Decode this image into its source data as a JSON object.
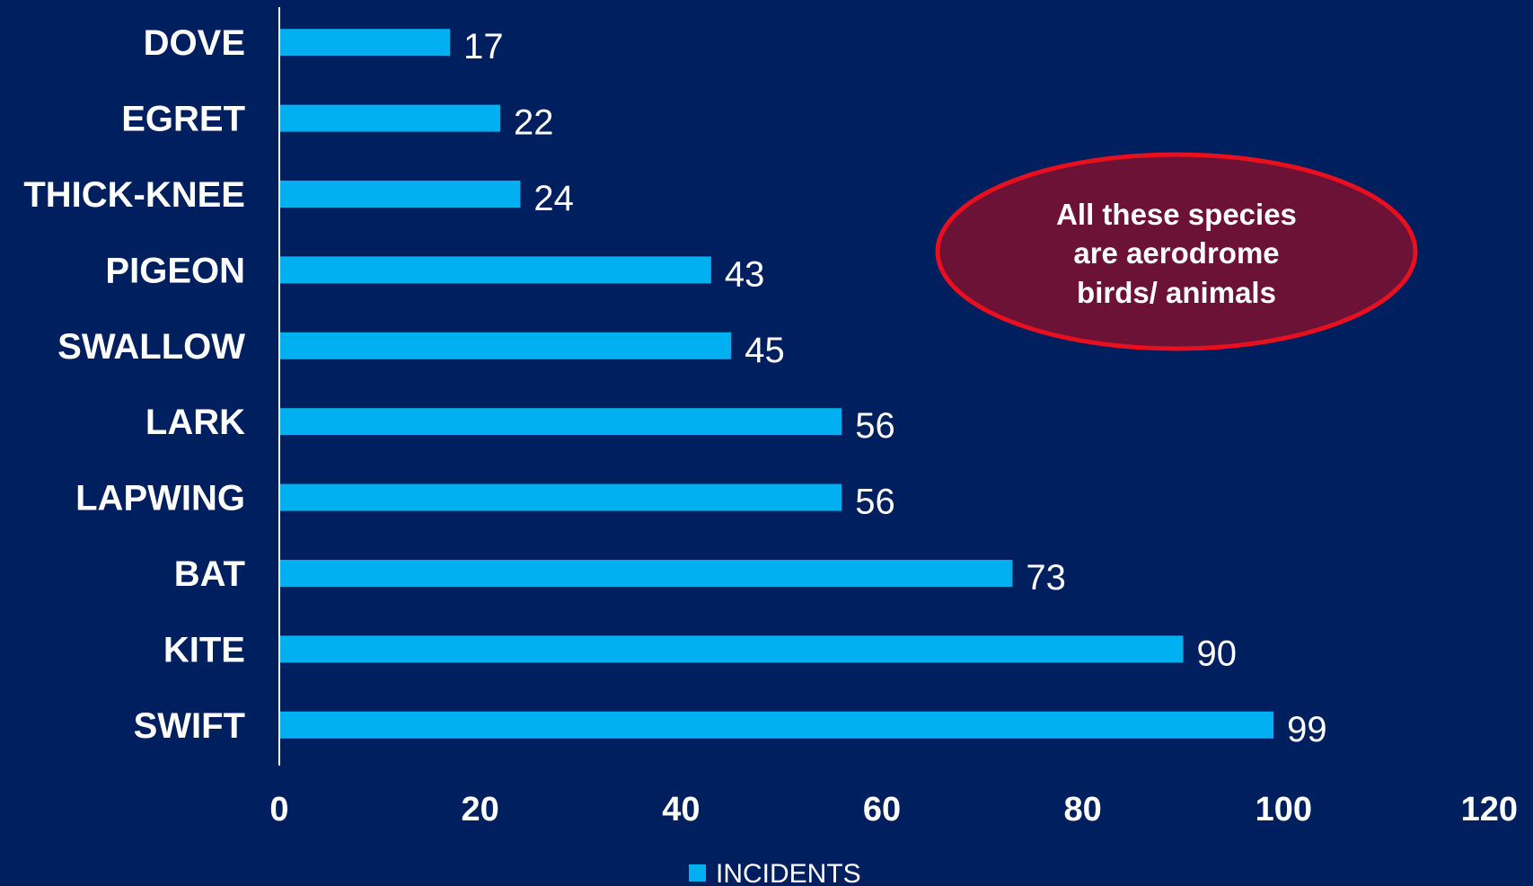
{
  "chart_data": {
    "type": "bar",
    "orientation": "horizontal",
    "categories": [
      "DOVE",
      "EGRET",
      "THICK-KNEE",
      "PIGEON",
      "SWALLOW",
      "LARK",
      "LAPWING",
      "BAT",
      "KITE",
      "SWIFT"
    ],
    "series": [
      {
        "name": "INCIDENTS",
        "values": [
          17,
          22,
          24,
          43,
          45,
          56,
          56,
          73,
          90,
          99
        ]
      }
    ],
    "xlim": [
      0,
      120
    ],
    "xticks": [
      0,
      20,
      40,
      60,
      80,
      100,
      120
    ],
    "grid": false,
    "legend": "bottom",
    "data_labels": true,
    "annotation": {
      "lines": [
        "All these species",
        "are aerodrome",
        "birds/ animals"
      ]
    }
  },
  "colors": {
    "background": "#001f5f",
    "bar": "#00b0f0",
    "callout_fill": "#6b1236",
    "callout_border": "#e8101f",
    "text": "#ffffff"
  }
}
